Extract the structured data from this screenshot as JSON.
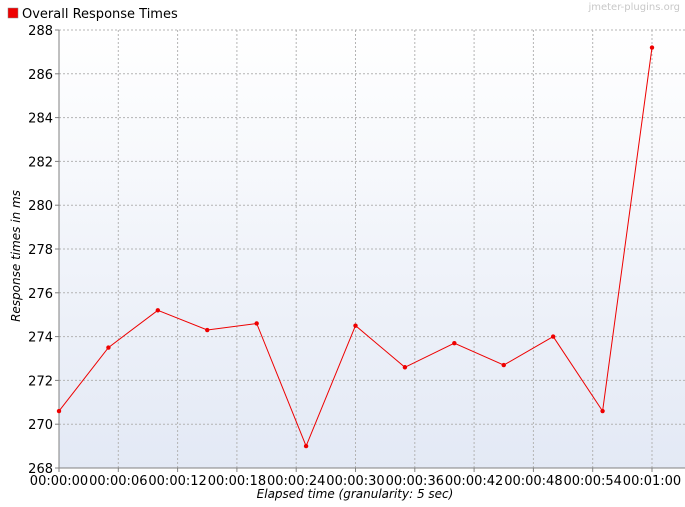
{
  "chart_data": {
    "type": "line",
    "title": "",
    "legend": {
      "label": "Overall Response Times",
      "color": "#ee0000",
      "placement": "top-left"
    },
    "watermark": "jmeter-plugins.org",
    "xlabel": "Elapsed time (granularity: 5 sec)",
    "ylabel": "Response times in ms",
    "x_ticks": [
      "00:00:00",
      "00:00:06",
      "00:00:12",
      "00:00:18",
      "00:00:24",
      "00:00:30",
      "00:00:36",
      "00:00:42",
      "00:00:48",
      "00:00:54",
      "00:01:00"
    ],
    "y_ticks": [
      268,
      270,
      272,
      274,
      276,
      278,
      280,
      282,
      284,
      286,
      288
    ],
    "xlim_seconds": [
      0,
      60
    ],
    "ylim": [
      268,
      288
    ],
    "grid": true,
    "series": [
      {
        "name": "Overall Response Times",
        "color": "#ee0000",
        "x_seconds": [
          0,
          5,
          10,
          15,
          20,
          25,
          30,
          35,
          40,
          45,
          50,
          55,
          60
        ],
        "values": [
          270.6,
          273.5,
          275.2,
          274.3,
          274.6,
          269.0,
          274.5,
          272.6,
          273.7,
          272.7,
          274.0,
          270.6,
          287.2
        ]
      }
    ]
  }
}
